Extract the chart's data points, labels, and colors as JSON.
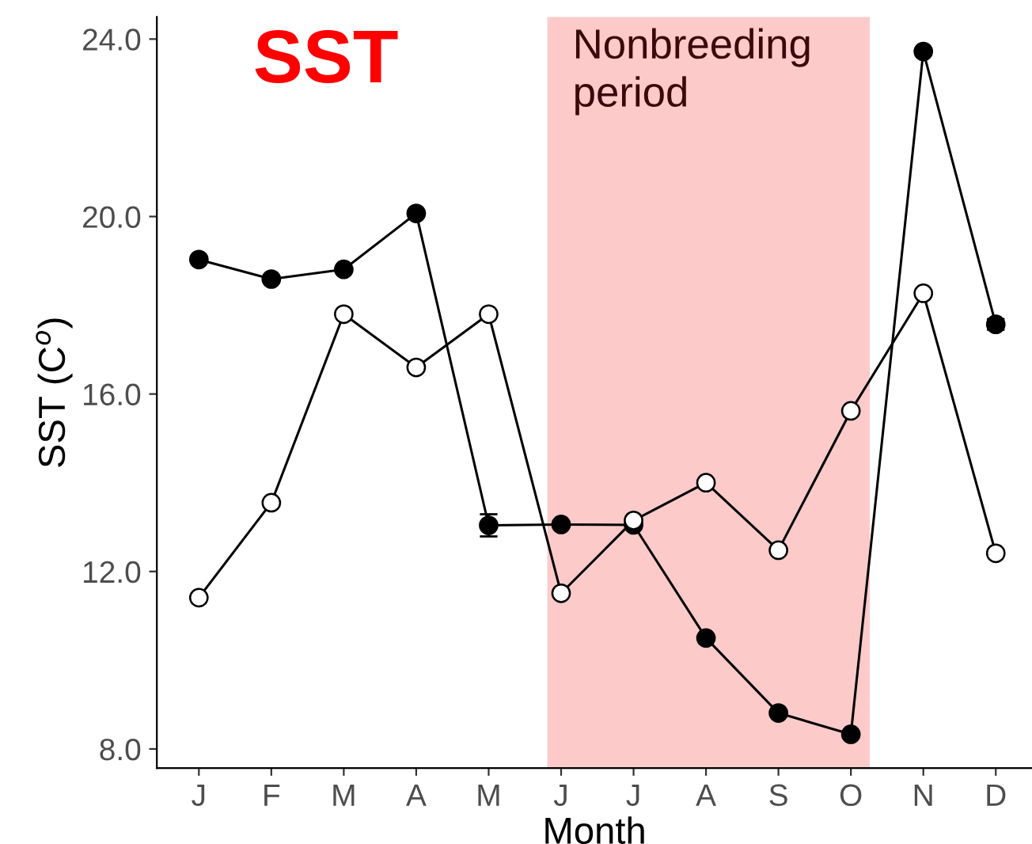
{
  "chart_data": {
    "type": "line",
    "title": "SST",
    "xlabel": "Month",
    "ylabel": "SST (C$^{o}$)",
    "categories": [
      "J",
      "F",
      "M",
      "A",
      "M",
      "J",
      "J",
      "A",
      "S",
      "O",
      "N",
      "D"
    ],
    "ylim": [
      7.57,
      24.5
    ],
    "yticks": [
      {
        "value": 8,
        "label": "8.0"
      },
      {
        "value": 12,
        "label": "12.0"
      },
      {
        "value": 16,
        "label": "16.0"
      },
      {
        "value": 20,
        "label": "20.0"
      },
      {
        "value": 24,
        "label": "24.0"
      }
    ],
    "series": [
      {
        "color": "#000000",
        "values": [
          19.03,
          18.59,
          18.81,
          20.07,
          13.04,
          13.06,
          13.05,
          10.5,
          8.81,
          8.33,
          23.72,
          17.57
        ],
        "errors": [
          null,
          null,
          null,
          null,
          0.25,
          null,
          null,
          null,
          null,
          null,
          null,
          0.12
        ]
      },
      {
        "color": "#ffffff",
        "values": [
          11.41,
          13.55,
          17.8,
          16.6,
          17.8,
          11.51,
          13.15,
          14.0,
          12.48,
          15.62,
          18.27,
          12.41
        ]
      }
    ],
    "annotations": [
      "Nonbreeding\nperiod"
    ],
    "grid": false,
    "legend": false,
    "marker": "circle",
    "line_style": "solid"
  }
}
